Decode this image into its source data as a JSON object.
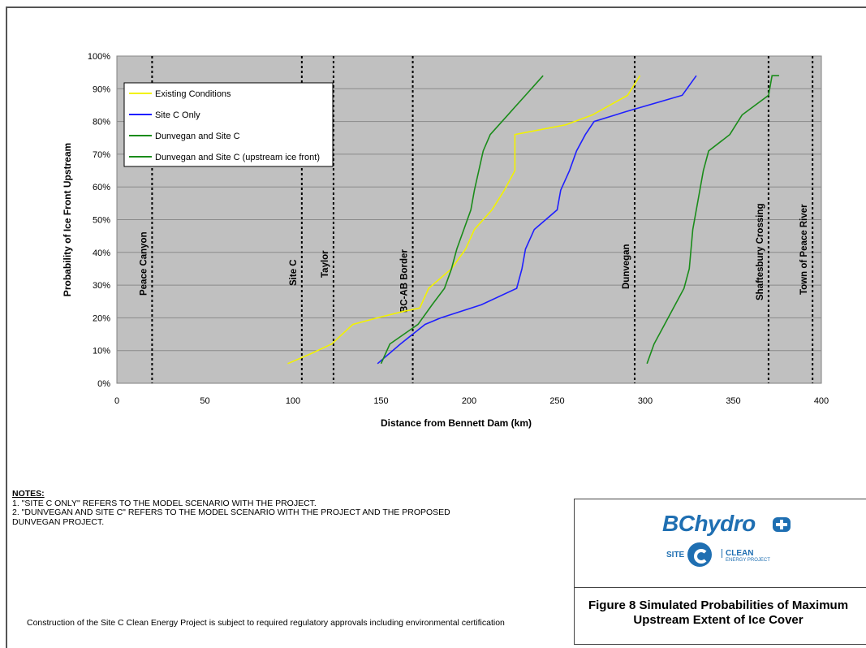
{
  "chart_data": {
    "type": "line",
    "xlabel": "Distance from Bennett Dam (km)",
    "ylabel": "Probability of Ice Front Upstream",
    "xlim": [
      0,
      400
    ],
    "ylim": [
      0,
      100
    ],
    "xticks": [
      "0",
      "50",
      "100",
      "150",
      "200",
      "250",
      "300",
      "350",
      "400"
    ],
    "yticks": [
      "0%",
      "10%",
      "20%",
      "30%",
      "40%",
      "50%",
      "60%",
      "70%",
      "80%",
      "90%",
      "100%"
    ],
    "grid": "horizontal",
    "legend_position": "top-left",
    "series": [
      {
        "name": "Existing Conditions",
        "color": "#f2f200",
        "x": [
          97,
          110,
          122,
          134,
          148,
          163,
          172,
          177,
          190,
          198,
          203,
          213,
          220,
          226,
          226,
          226,
          255,
          270,
          290,
          297
        ],
        "y": [
          6,
          9,
          12,
          18,
          20,
          22,
          23,
          29,
          35,
          41,
          47,
          53,
          59,
          65,
          71,
          76,
          79,
          82,
          88,
          94
        ]
      },
      {
        "name": "Site C Only",
        "color": "#1f1fff",
        "x": [
          148,
          161,
          175,
          184,
          207,
          227,
          230,
          232,
          237,
          250,
          252,
          257,
          261,
          266,
          271,
          289,
          321,
          329
        ],
        "y": [
          6,
          12,
          18,
          20,
          24,
          29,
          35,
          41,
          47,
          53,
          59,
          65,
          71,
          76,
          80,
          83,
          88,
          94
        ]
      },
      {
        "name": "Dunvegan and Site C",
        "color": "#1a8c1a",
        "x": [
          150,
          155,
          171,
          179,
          186,
          190,
          193,
          197,
          201,
          203,
          208,
          212,
          222,
          232,
          242
        ],
        "y": [
          6,
          12,
          18,
          24,
          29,
          35,
          41,
          47,
          53,
          59,
          71,
          76,
          82,
          88,
          94
        ]
      },
      {
        "name": "Dunvegan and Site C (upstream ice front)",
        "color": "#1a8c1a",
        "x": [
          301,
          305,
          311,
          322,
          325,
          327,
          329,
          331,
          333,
          336,
          348,
          355,
          370,
          372,
          376
        ],
        "y": [
          6,
          12,
          18,
          29,
          35,
          47,
          53,
          59,
          65,
          71,
          76,
          82,
          88,
          94,
          94
        ]
      }
    ],
    "reference_lines": [
      {
        "label": "Peace Canyon",
        "x": 20
      },
      {
        "label": "Site C",
        "x": 105
      },
      {
        "label": "Taylor",
        "x": 123
      },
      {
        "label": "BC-AB Border",
        "x": 168
      },
      {
        "label": "Dunvegan",
        "x": 294
      },
      {
        "label": "Shaftesbury Crossing",
        "x": 370
      },
      {
        "label": "Town of Peace River",
        "x": 395
      }
    ]
  },
  "notes": {
    "title": "NOTES:",
    "line1": "1. \"SITE C ONLY\" REFERS TO THE MODEL SCENARIO WITH THE PROJECT.",
    "line2": "2. \"DUNVEGAN AND SITE C\" REFERS TO THE MODEL SCENARIO WITH THE PROJECT AND THE PROPOSED",
    "line3": "DUNVEGAN PROJECT."
  },
  "footer": "Construction of the Site C Clean Energy Project is subject to required regulatory approvals including environmental certification",
  "logo": {
    "brand": "BChydro",
    "site": "SITE",
    "clean": "CLEAN",
    "clean_sub": "ENERGY PROJECT"
  },
  "caption": {
    "line1": "Figure 8 Simulated Probabilities of Maximum",
    "line2": "Upstream Extent of Ice Cover"
  }
}
